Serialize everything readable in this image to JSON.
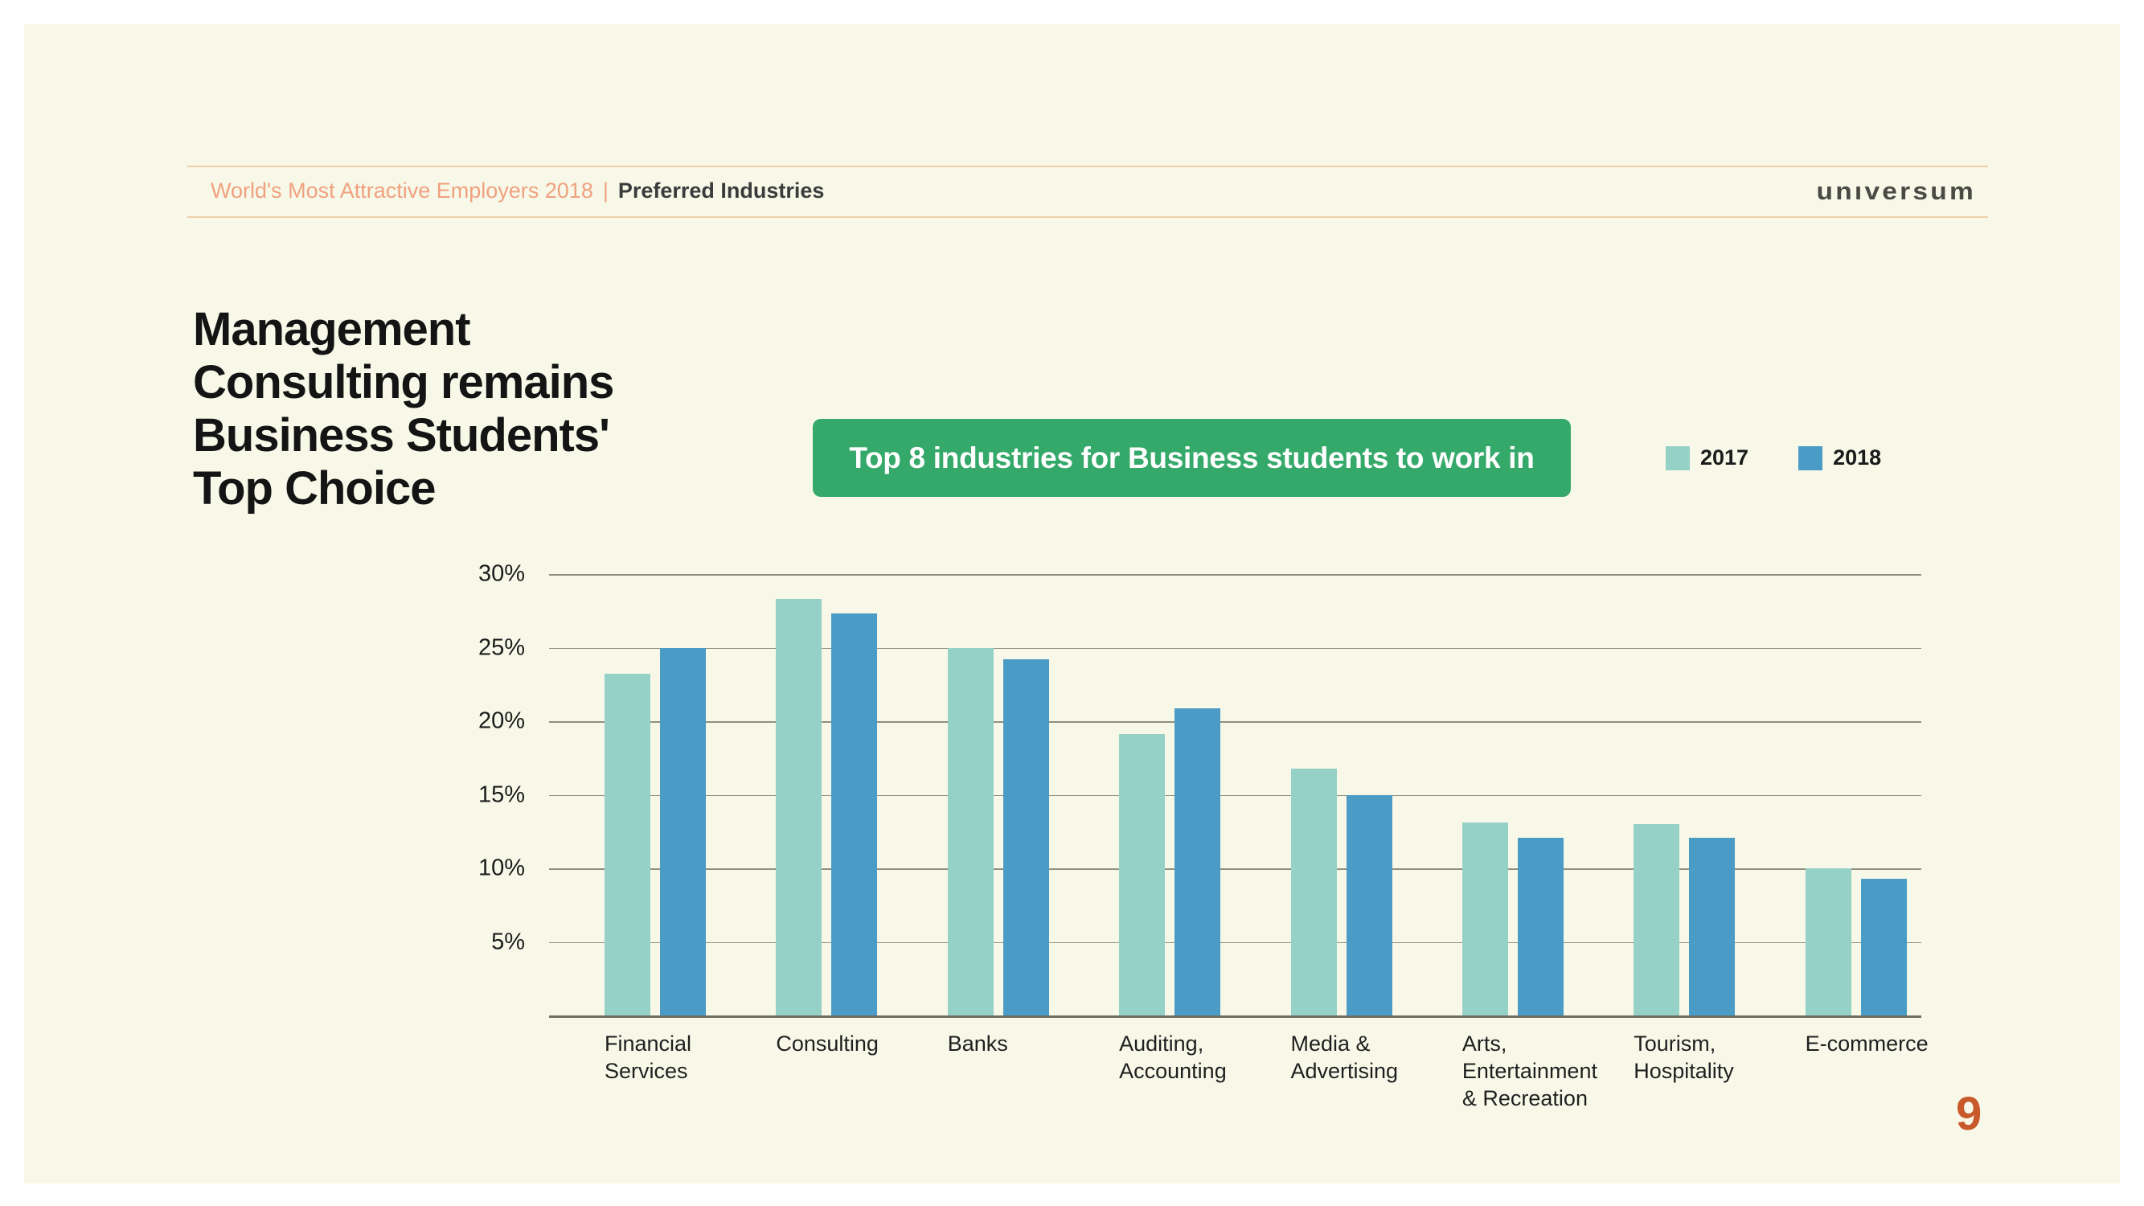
{
  "page": {
    "outer_background": "#ffffff",
    "panel_background": "#f8f8e9",
    "page_number": "9",
    "page_number_color": "#c7592b"
  },
  "header": {
    "breadcrumb_accent": "World's Most Attractive Employers 2018",
    "separator": "|",
    "breadcrumb_current": "Preferred Industries",
    "rule_color": "#ecd0aa",
    "logo_text": "unıversum"
  },
  "title": {
    "text": "Management\nConsulting remains\nBusiness Students'\nTop Choice"
  },
  "banner": {
    "label": "Top 8 industries for Business students to work in",
    "background": "#35a96a",
    "text_color": "#ffffff"
  },
  "legend": [
    {
      "label": "2017",
      "color": "#96d1c8"
    },
    {
      "label": "2018",
      "color": "#4a9bc6"
    }
  ],
  "chart_data": {
    "type": "bar",
    "title": "Top 8 industries for Business students to work in",
    "categories": [
      "Financial\nServices",
      "Consulting",
      "Banks",
      "Auditing,\nAccounting",
      "Media &\nAdvertising",
      "Arts,\nEntertainment\n& Recreation",
      "Tourism,\nHospitality",
      "E-commerce"
    ],
    "series": [
      {
        "name": "2017",
        "color": "#96d1c8",
        "values": [
          23.2,
          28.3,
          25.0,
          19.1,
          16.8,
          13.1,
          13.0,
          10.0
        ]
      },
      {
        "name": "2018",
        "color": "#4a9bc6",
        "values": [
          25.0,
          27.3,
          24.2,
          20.9,
          15.0,
          12.1,
          12.1,
          9.3
        ]
      }
    ],
    "unit": "%",
    "xlabel": "",
    "ylabel": "",
    "ylim": [
      0,
      30
    ],
    "y_ticks": [
      "30%",
      "25%",
      "20%",
      "15%",
      "10%",
      "5%"
    ],
    "grid": true,
    "gridline_color": "#8f8f80",
    "axis_line_color": "#6e6e64",
    "legend_position": "top-right"
  }
}
